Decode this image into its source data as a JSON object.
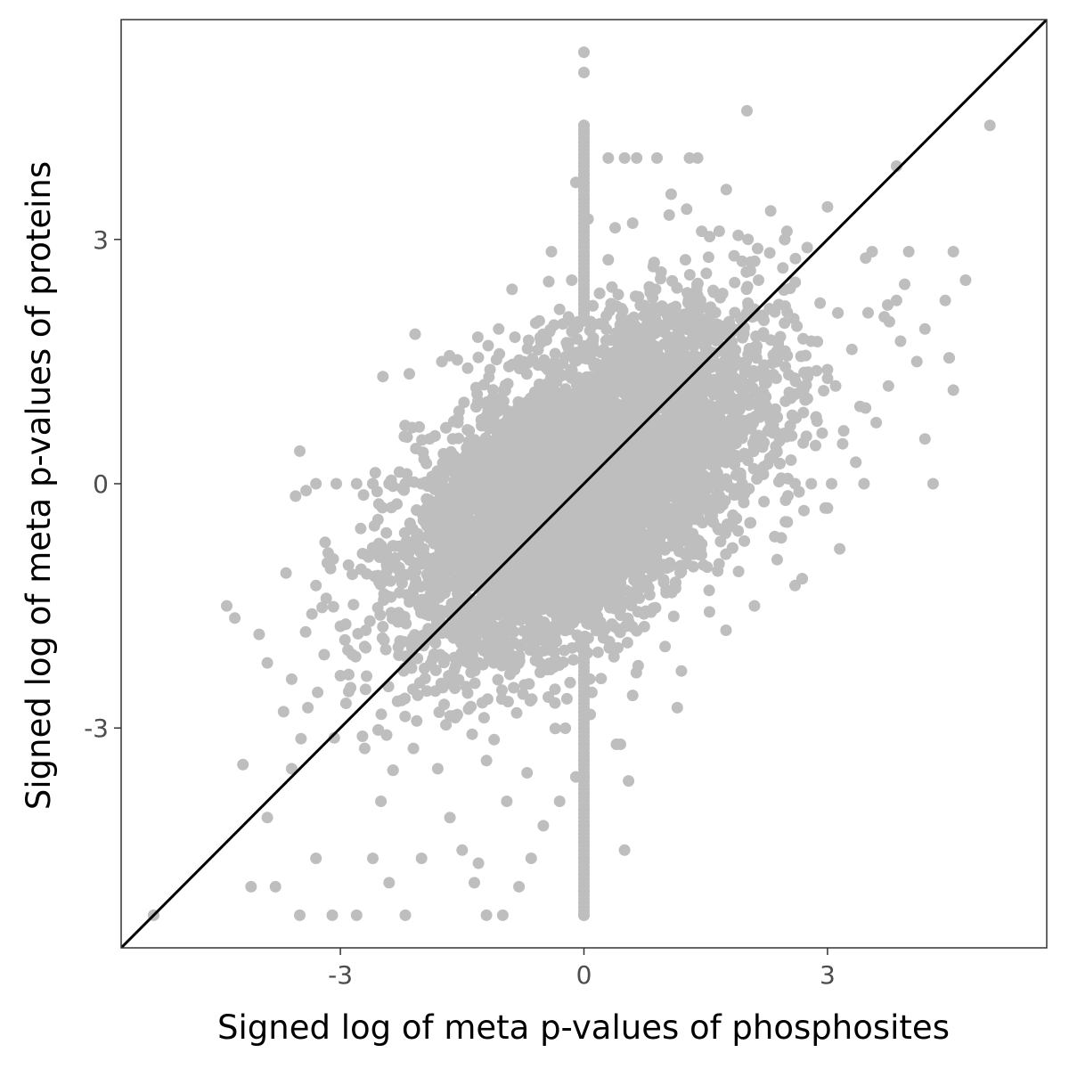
{
  "chart_data": {
    "type": "scatter",
    "title": "",
    "xlabel": "Signed log of meta p-values of phosphosites",
    "ylabel": "Signed log of meta p-values of proteins",
    "xlim": [
      -5.7,
      5.7
    ],
    "ylim": [
      -5.7,
      5.7
    ],
    "xticks": [
      -3,
      0,
      3
    ],
    "yticks": [
      -3,
      0,
      3
    ],
    "xtick_labels": [
      "-3",
      "0",
      "3"
    ],
    "ytick_labels": [
      "-3",
      "0",
      "3"
    ],
    "grid": false,
    "legend": "none",
    "point_color": "#bebebe",
    "line_color": "#000000",
    "reference_line": {
      "slope": 1,
      "intercept": 0
    },
    "series": [
      {
        "values": [
          [
            5.0,
            4.4
          ],
          [
            4.7,
            2.5
          ],
          [
            4.55,
            2.85
          ],
          [
            4.55,
            1.15
          ],
          [
            4.45,
            2.25
          ],
          [
            4.3,
            0.0
          ],
          [
            4.2,
            0.55
          ],
          [
            4.2,
            1.9
          ],
          [
            4.1,
            1.5
          ],
          [
            4.0,
            2.85
          ],
          [
            3.95,
            2.45
          ],
          [
            3.9,
            1.75
          ],
          [
            3.85,
            3.9
          ],
          [
            3.85,
            2.25
          ],
          [
            3.75,
            1.2
          ],
          [
            3.7,
            2.05
          ],
          [
            3.6,
            0.75
          ],
          [
            3.55,
            2.85
          ],
          [
            3.5,
            2.1
          ],
          [
            3.45,
            0.0
          ],
          [
            3.4,
            0.95
          ],
          [
            3.3,
            1.65
          ],
          [
            3.2,
            0.65
          ],
          [
            3.15,
            -0.8
          ],
          [
            3.0,
            3.4
          ],
          [
            3.0,
            1.4
          ],
          [
            3.0,
            -0.3
          ],
          [
            2.75,
            2.9
          ],
          [
            2.7,
            0.5
          ],
          [
            2.65,
            -0.1
          ],
          [
            2.6,
            -1.25
          ],
          [
            2.5,
            3.1
          ],
          [
            2.4,
            2.2
          ],
          [
            2.3,
            3.35
          ],
          [
            2.35,
            -0.65
          ],
          [
            2.1,
            -1.5
          ],
          [
            2.0,
            2.6
          ],
          [
            1.9,
            3.05
          ],
          [
            1.75,
            -1.8
          ],
          [
            1.65,
            -0.55
          ],
          [
            1.5,
            1.7
          ],
          [
            1.4,
            4.0
          ],
          [
            1.3,
            4.0
          ],
          [
            1.15,
            -2.75
          ],
          [
            1.05,
            3.3
          ],
          [
            0.9,
            4.0
          ],
          [
            0.65,
            4.0
          ],
          [
            0.5,
            4.0
          ],
          [
            0.3,
            4.0
          ],
          [
            1.0,
            -2.0
          ],
          [
            1.2,
            -2.3
          ],
          [
            1.45,
            3.1
          ],
          [
            0.6,
            -2.6
          ],
          [
            0.45,
            -3.2
          ],
          [
            0.55,
            -3.65
          ],
          [
            0.5,
            -4.5
          ],
          [
            0.4,
            -3.2
          ],
          [
            -0.1,
            -3.6
          ],
          [
            -0.3,
            -3.9
          ],
          [
            -0.5,
            -4.2
          ],
          [
            -0.65,
            -4.6
          ],
          [
            -0.8,
            -4.95
          ],
          [
            -1.0,
            -5.3
          ],
          [
            -1.2,
            -5.3
          ],
          [
            -1.35,
            -4.9
          ],
          [
            -1.5,
            -4.5
          ],
          [
            -1.65,
            -4.1
          ],
          [
            -1.8,
            -3.5
          ],
          [
            -2.0,
            -4.6
          ],
          [
            -2.2,
            -5.3
          ],
          [
            -2.4,
            -4.9
          ],
          [
            -2.6,
            -4.6
          ],
          [
            -2.8,
            -5.3
          ],
          [
            -3.1,
            -5.3
          ],
          [
            -3.5,
            -5.3
          ],
          [
            -3.8,
            -4.95
          ],
          [
            -4.1,
            -4.95
          ],
          [
            -5.3,
            -5.3
          ],
          [
            -3.3,
            -4.6
          ],
          [
            -3.6,
            -3.5
          ],
          [
            -3.9,
            -4.1
          ],
          [
            -4.2,
            -3.45
          ],
          [
            -4.4,
            -1.5
          ],
          [
            -4.3,
            -1.65
          ],
          [
            -4.0,
            -1.85
          ],
          [
            -3.9,
            -2.2
          ],
          [
            -3.6,
            -2.4
          ],
          [
            -3.4,
            -2.75
          ],
          [
            -3.2,
            -2.1
          ],
          [
            -3.3,
            -1.25
          ],
          [
            -3.0,
            -1.75
          ],
          [
            -2.9,
            -1.0
          ],
          [
            -2.75,
            -0.55
          ],
          [
            -2.6,
            0.0
          ],
          [
            -2.4,
            0.0
          ],
          [
            -2.2,
            0.0
          ],
          [
            -2.0,
            0.0
          ],
          [
            -1.9,
            0.55
          ],
          [
            -2.15,
            1.35
          ],
          [
            -1.75,
            1.5
          ],
          [
            -1.55,
            0.8
          ],
          [
            -1.3,
            1.55
          ],
          [
            -1.05,
            1.9
          ],
          [
            -0.85,
            1.8
          ],
          [
            -0.55,
            2.0
          ],
          [
            -0.4,
            2.85
          ],
          [
            -0.15,
            2.5
          ],
          [
            -0.1,
            3.7
          ],
          [
            0.05,
            3.25
          ],
          [
            0.3,
            2.75
          ],
          [
            0.6,
            3.2
          ],
          [
            0.95,
            2.6
          ],
          [
            1.25,
            2.75
          ],
          [
            1.6,
            2.35
          ],
          [
            1.85,
            2.8
          ],
          [
            2.15,
            2.5
          ],
          [
            2.45,
            2.65
          ],
          [
            2.8,
            1.75
          ],
          [
            3.1,
            1.2
          ],
          [
            -3.5,
            0.4
          ],
          [
            -3.15,
            -0.85
          ],
          [
            -3.7,
            -2.8
          ],
          [
            -3.35,
            -1.6
          ],
          [
            -2.7,
            -3.25
          ],
          [
            -2.5,
            -3.9
          ],
          [
            -2.1,
            -3.25
          ],
          [
            -1.6,
            -2.85
          ],
          [
            -1.2,
            -3.4
          ],
          [
            -0.95,
            -3.9
          ],
          [
            -0.7,
            -3.55
          ],
          [
            0.8,
            1.4
          ],
          [
            1.7,
            1.05
          ],
          [
            2.2,
            0.45
          ],
          [
            2.55,
            1.05
          ],
          [
            1.95,
            0.0
          ]
        ]
      }
    ],
    "vertical_streak": {
      "x": 0,
      "y_values": [
        5.3,
        5.05,
        4.4,
        4.3,
        4.2,
        4.1,
        4.0,
        3.9,
        3.8,
        3.7,
        3.6,
        3.5,
        3.4,
        3.3,
        3.2,
        3.1,
        3.0,
        2.9,
        2.8,
        2.7,
        2.6,
        2.5,
        2.4,
        2.3,
        2.2,
        2.1,
        2.0,
        -2.2,
        -2.4,
        -2.6,
        -2.8,
        -3.0,
        -3.2,
        -3.4,
        -3.6,
        -3.8,
        -4.0,
        -4.2,
        -4.4,
        -4.6,
        -4.8,
        -5.0,
        -5.3
      ]
    },
    "horizontal_streak": {
      "y": 0,
      "x_values": [
        -3.3,
        -3.05,
        -2.8,
        -2.6,
        -2.4,
        -2.2,
        -2.0,
        -1.8,
        -1.6,
        2.6,
        2.8,
        3.05
      ]
    },
    "dense_cloud": {
      "count": 7000,
      "center": [
        0,
        -0.05
      ],
      "sd": [
        1.05,
        1.0
      ],
      "correlation": 0.55,
      "seed": 7
    }
  }
}
